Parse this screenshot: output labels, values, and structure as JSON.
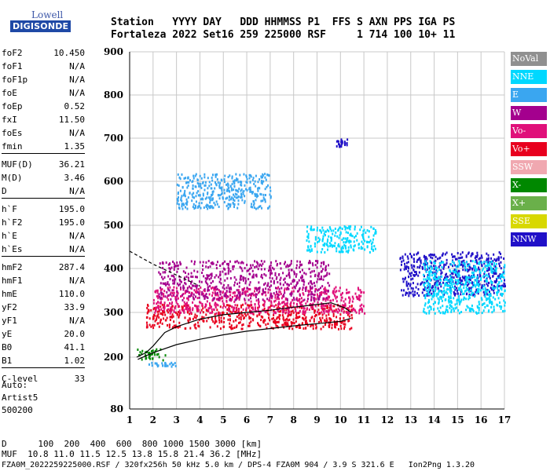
{
  "logo": {
    "line1": "Lowell",
    "line2": "DIGISONDE"
  },
  "header": {
    "row1": "Station   YYYY DAY   DDD HHMMSS P1  FFS S AXN PPS IGA PS",
    "row2": "Fortaleza 2022 Set16 259 225000 RSF     1 714 100 10+ 11"
  },
  "params": [
    {
      "k": "foF2",
      "v": "10.450"
    },
    {
      "k": "foF1",
      "v": "N/A"
    },
    {
      "k": "foF1p",
      "v": "N/A"
    },
    {
      "k": "foE",
      "v": "N/A"
    },
    {
      "k": "foEp",
      "v": "0.52"
    },
    {
      "k": "fxI",
      "v": "11.50"
    },
    {
      "k": "foEs",
      "v": "N/A"
    },
    {
      "k": "fmin",
      "v": "1.35"
    },
    {
      "k": "MUF(D)",
      "v": "36.21"
    },
    {
      "k": "M(D)",
      "v": "3.46"
    },
    {
      "k": "D",
      "v": "N/A"
    },
    {
      "k": "h`F",
      "v": "195.0"
    },
    {
      "k": "h`F2",
      "v": "195.0"
    },
    {
      "k": "h`E",
      "v": "N/A"
    },
    {
      "k": "h`Es",
      "v": "N/A"
    },
    {
      "k": "hmF2",
      "v": "287.4"
    },
    {
      "k": "hmF1",
      "v": "N/A"
    },
    {
      "k": "hmE",
      "v": "110.0"
    },
    {
      "k": "yF2",
      "v": "33.9"
    },
    {
      "k": "yF1",
      "v": "N/A"
    },
    {
      "k": "yE",
      "v": "20.0"
    },
    {
      "k": "B0",
      "v": "41.1"
    },
    {
      "k": "B1",
      "v": "1.02"
    },
    {
      "k": "C-level",
      "v": "33"
    }
  ],
  "auto": [
    "Auto:",
    "Artist5",
    "500200"
  ],
  "legend": [
    {
      "label": "NoVal",
      "color": "#909090"
    },
    {
      "label": "NNE",
      "color": "#00d8ff"
    },
    {
      "label": "E",
      "color": "#3aa6f0"
    },
    {
      "label": "W",
      "color": "#a4008e"
    },
    {
      "label": "Vo-",
      "color": "#e0107a"
    },
    {
      "label": "Vo+",
      "color": "#e8001e"
    },
    {
      "label": "SSW",
      "color": "#f0a8b0"
    },
    {
      "label": "X-",
      "color": "#008800"
    },
    {
      "label": "X+",
      "color": "#6ab04a"
    },
    {
      "label": "SSE",
      "color": "#d8d800"
    },
    {
      "label": "NNW",
      "color": "#2010c8"
    }
  ],
  "footer": {
    "line1": "D      100  200  400  600  800 1000 1500 3000 [km]",
    "line2": "MUF  10.8 11.0 11.5 12.5 13.8 15.8 21.4 36.2 [MHz]",
    "line3": "FZA0M_2022259225000.RSF / 320fx256h 50 kHz 5.0 km / DPS-4 FZA0M 904 / 3.9 S 321.6 E   Ion2Png 1.3.20"
  },
  "chart_data": {
    "type": "scatter",
    "xlim": [
      1,
      17
    ],
    "ylim": [
      80,
      900
    ],
    "x_ticks": [
      1,
      2,
      3,
      4,
      5,
      6,
      7,
      8,
      9,
      10,
      11,
      12,
      13,
      14,
      15,
      16,
      17
    ],
    "y_ticks": [
      80,
      200,
      300,
      400,
      500,
      600,
      700,
      800,
      900
    ],
    "grid": true,
    "traces": [
      {
        "name": "o-trace",
        "points": [
          [
            1.3,
            200
          ],
          [
            1.7,
            210
          ],
          [
            2.0,
            225
          ],
          [
            2.5,
            255
          ],
          [
            3.0,
            268
          ],
          [
            4.0,
            285
          ],
          [
            5.0,
            295
          ],
          [
            6.0,
            300
          ],
          [
            7.0,
            305
          ],
          [
            8.0,
            312
          ],
          [
            9.0,
            318
          ],
          [
            9.6,
            322
          ],
          [
            10.2,
            310
          ],
          [
            10.45,
            300
          ]
        ]
      },
      {
        "name": "profile",
        "points": [
          [
            1.35,
            195
          ],
          [
            2.0,
            210
          ],
          [
            3.0,
            228
          ],
          [
            4.0,
            240
          ],
          [
            5.0,
            250
          ],
          [
            6.0,
            258
          ],
          [
            7.0,
            264
          ],
          [
            8.0,
            270
          ],
          [
            9.0,
            275
          ],
          [
            10.0,
            280
          ],
          [
            10.45,
            287
          ]
        ]
      },
      {
        "name": "profile-top",
        "points": [
          [
            1.0,
            440
          ],
          [
            2.0,
            410
          ],
          [
            3.0,
            385
          ],
          [
            4.0,
            360
          ]
        ]
      }
    ],
    "echo_regions": [
      {
        "color": "#e8001e",
        "x": [
          1.7,
          10.5
        ],
        "y": [
          265,
          320
        ]
      },
      {
        "color": "#e0107a",
        "x": [
          2.0,
          11.0
        ],
        "y": [
          300,
          360
        ]
      },
      {
        "color": "#a4008e",
        "x": [
          2.2,
          9.5
        ],
        "y": [
          330,
          420
        ]
      },
      {
        "color": "#3aa6f0",
        "x": [
          3.0,
          7.0
        ],
        "y": [
          540,
          620
        ]
      },
      {
        "color": "#00d8ff",
        "x": [
          8.5,
          11.5
        ],
        "y": [
          440,
          500
        ]
      },
      {
        "color": "#3aa6f0",
        "x": [
          1.8,
          3.0
        ],
        "y": [
          180,
          190
        ]
      },
      {
        "color": "#008800",
        "x": [
          1.3,
          2.5
        ],
        "y": [
          195,
          220
        ]
      },
      {
        "color": "#2010c8",
        "x": [
          12.5,
          17.0
        ],
        "y": [
          340,
          440
        ]
      },
      {
        "color": "#00d8ff",
        "x": [
          13.5,
          17.0
        ],
        "y": [
          300,
          420
        ]
      },
      {
        "color": "#2010c8",
        "x": [
          9.8,
          10.3
        ],
        "y": [
          680,
          700
        ]
      }
    ]
  }
}
